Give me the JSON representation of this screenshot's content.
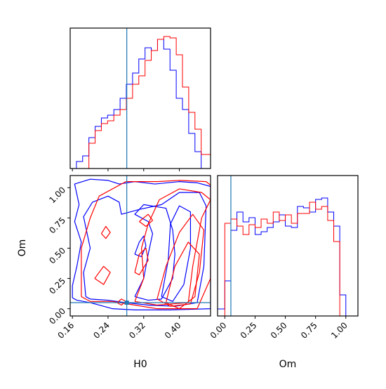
{
  "chart_data": [
    {
      "panel": "H0 marginal",
      "type": "histogram",
      "title": "",
      "xlabel": "",
      "ylabel": "",
      "xlim": [
        0.155,
        0.47
      ],
      "truth": 0.282,
      "series": [
        {
          "color": "#0000ff",
          "edges": [
            0.155,
            0.169,
            0.183,
            0.197,
            0.211,
            0.225,
            0.239,
            0.253,
            0.267,
            0.281,
            0.295,
            0.309,
            0.323,
            0.337,
            0.351,
            0.365,
            0.379,
            0.393,
            0.407,
            0.421,
            0.435,
            0.449,
            0.47
          ],
          "heights": [
            0.0,
            0.05,
            0.09,
            0.22,
            0.3,
            0.36,
            0.38,
            0.42,
            0.5,
            0.6,
            0.68,
            0.78,
            0.86,
            0.84,
            0.92,
            0.85,
            0.7,
            0.5,
            0.42,
            0.25,
            0.12,
            0.0
          ]
        },
        {
          "color": "#ff0000",
          "edges": [
            0.155,
            0.169,
            0.183,
            0.197,
            0.211,
            0.225,
            0.239,
            0.253,
            0.267,
            0.281,
            0.295,
            0.309,
            0.323,
            0.337,
            0.351,
            0.365,
            0.379,
            0.393,
            0.407,
            0.421,
            0.435,
            0.449,
            0.47
          ],
          "heights": [
            0.0,
            0.0,
            0.0,
            0.18,
            0.27,
            0.32,
            0.34,
            0.38,
            0.42,
            0.5,
            0.6,
            0.66,
            0.77,
            0.84,
            0.92,
            0.94,
            0.93,
            0.81,
            0.58,
            0.4,
            0.28,
            0.1
          ]
        }
      ]
    },
    {
      "panel": "Om marginal",
      "type": "histogram",
      "title": "",
      "xlabel": "Om",
      "ylabel": "",
      "xlim": [
        -0.06,
        1.1
      ],
      "xticks": [
        "0.00",
        "0.25",
        "0.50",
        "0.75",
        "1.00"
      ],
      "xtick_values": [
        0.0,
        0.25,
        0.5,
        0.75,
        1.0
      ],
      "truth": 0.05,
      "series": [
        {
          "color": "#0000ff",
          "edges": [
            -0.06,
            0.0,
            0.05,
            0.1,
            0.15,
            0.2,
            0.25,
            0.3,
            0.35,
            0.4,
            0.45,
            0.5,
            0.55,
            0.6,
            0.65,
            0.7,
            0.75,
            0.8,
            0.85,
            0.9,
            0.95,
            1.0,
            1.05,
            1.1
          ],
          "heights": [
            0.05,
            0.25,
            0.61,
            0.74,
            0.67,
            0.7,
            0.58,
            0.6,
            0.63,
            0.67,
            0.72,
            0.64,
            0.63,
            0.78,
            0.77,
            0.74,
            0.83,
            0.84,
            0.74,
            0.64,
            0.15,
            0.0,
            0.0
          ]
        },
        {
          "color": "#ff0000",
          "edges": [
            -0.06,
            0.0,
            0.05,
            0.1,
            0.15,
            0.2,
            0.25,
            0.3,
            0.35,
            0.4,
            0.45,
            0.5,
            0.55,
            0.6,
            0.65,
            0.7,
            0.75,
            0.8,
            0.85,
            0.9,
            0.95,
            1.0,
            1.05,
            1.1
          ],
          "heights": [
            0.0,
            0.66,
            0.69,
            0.64,
            0.58,
            0.65,
            0.63,
            0.69,
            0.66,
            0.74,
            0.68,
            0.72,
            0.66,
            0.73,
            0.73,
            0.81,
            0.76,
            0.78,
            0.68,
            0.53,
            0.0,
            0.0,
            0.0
          ]
        }
      ]
    },
    {
      "panel": "H0 vs Om joint",
      "type": "contour",
      "title": "",
      "xlabel": "H0",
      "ylabel": "Om",
      "xlim": [
        0.155,
        0.47
      ],
      "ylim": [
        -0.06,
        1.1
      ],
      "xticks": [
        "0.16",
        "0.24",
        "0.32",
        "0.40"
      ],
      "xtick_values": [
        0.16,
        0.24,
        0.32,
        0.4
      ],
      "yticks": [
        "0.00",
        "0.25",
        "0.50",
        "0.75",
        "1.00"
      ],
      "ytick_values": [
        0.0,
        0.25,
        0.5,
        0.75,
        1.0
      ],
      "truth": {
        "H0": 0.282,
        "Om": 0.05
      },
      "series": [
        {
          "color": "#0000ff",
          "contours": [
            [
              [
                0.16,
                0.09
              ],
              [
                0.16,
                0.19
              ],
              [
                0.17,
                0.35
              ],
              [
                0.18,
                0.55
              ],
              [
                0.165,
                0.72
              ],
              [
                0.175,
                0.86
              ],
              [
                0.165,
                1.03
              ],
              [
                0.2,
                1.07
              ],
              [
                0.24,
                1.06
              ],
              [
                0.265,
                1.03
              ],
              [
                0.3,
                1.05
              ],
              [
                0.345,
                1.03
              ],
              [
                0.4,
                1.05
              ],
              [
                0.44,
                1.04
              ],
              [
                0.47,
                1.01
              ],
              [
                0.47,
                0.0
              ],
              [
                0.38,
                -0.01
              ],
              [
                0.3,
                -0.01
              ],
              [
                0.25,
                0.0
              ],
              [
                0.22,
                0.03
              ],
              [
                0.2,
                0.05
              ],
              [
                0.17,
                0.07
              ],
              [
                0.16,
                0.09
              ]
            ],
            [
              [
                0.19,
                0.1
              ],
              [
                0.185,
                0.3
              ],
              [
                0.2,
                0.5
              ],
              [
                0.185,
                0.76
              ],
              [
                0.205,
                0.88
              ],
              [
                0.24,
                0.93
              ],
              [
                0.265,
                0.88
              ],
              [
                0.27,
                0.78
              ],
              [
                0.31,
                0.82
              ],
              [
                0.36,
                0.86
              ],
              [
                0.4,
                0.96
              ],
              [
                0.445,
                0.96
              ],
              [
                0.46,
                0.85
              ],
              [
                0.455,
                0.35
              ],
              [
                0.44,
                0.05
              ],
              [
                0.39,
                0.02
              ],
              [
                0.33,
                0.03
              ],
              [
                0.28,
                0.05
              ],
              [
                0.24,
                0.07
              ],
              [
                0.2,
                0.08
              ],
              [
                0.19,
                0.1
              ]
            ],
            [
              [
                0.3,
                0.1
              ],
              [
                0.32,
                0.25
              ],
              [
                0.33,
                0.45
              ],
              [
                0.34,
                0.62
              ],
              [
                0.33,
                0.72
              ],
              [
                0.3,
                0.78
              ],
              [
                0.32,
                0.86
              ],
              [
                0.37,
                0.83
              ],
              [
                0.385,
                0.65
              ],
              [
                0.39,
                0.45
              ],
              [
                0.385,
                0.25
              ],
              [
                0.36,
                0.08
              ],
              [
                0.33,
                0.07
              ],
              [
                0.3,
                0.1
              ]
            ],
            [
              [
                0.36,
                0.1
              ],
              [
                0.375,
                0.4
              ],
              [
                0.38,
                0.7
              ],
              [
                0.4,
                0.85
              ],
              [
                0.425,
                0.8
              ],
              [
                0.425,
                0.5
              ],
              [
                0.41,
                0.2
              ],
              [
                0.385,
                0.06
              ],
              [
                0.36,
                0.1
              ]
            ],
            [
              [
                0.3,
                0.45
              ],
              [
                0.31,
                0.55
              ],
              [
                0.32,
                0.6
              ],
              [
                0.325,
                0.52
              ],
              [
                0.315,
                0.43
              ],
              [
                0.3,
                0.45
              ]
            ]
          ]
        },
        {
          "color": "#ff0000",
          "contours": [
            [
              [
                0.18,
                0.1
              ],
              [
                0.18,
                0.5
              ],
              [
                0.2,
                0.75
              ],
              [
                0.22,
                0.93
              ],
              [
                0.28,
                1.05
              ],
              [
                0.35,
                1.05
              ],
              [
                0.4,
                1.06
              ],
              [
                0.46,
                1.05
              ],
              [
                0.47,
                1.02
              ],
              [
                0.47,
                0.25
              ],
              [
                0.44,
                0.0
              ],
              [
                0.35,
                0.0
              ],
              [
                0.3,
                0.03
              ],
              [
                0.25,
                0.06
              ],
              [
                0.2,
                0.06
              ],
              [
                0.18,
                0.1
              ]
            ],
            [
              [
                0.3,
                0.06
              ],
              [
                0.32,
                0.25
              ],
              [
                0.315,
                0.5
              ],
              [
                0.33,
                0.7
              ],
              [
                0.355,
                0.9
              ],
              [
                0.4,
                0.99
              ],
              [
                0.45,
                0.96
              ],
              [
                0.47,
                0.9
              ],
              [
                0.45,
                0.75
              ],
              [
                0.43,
                0.35
              ],
              [
                0.42,
                0.05
              ],
              [
                0.35,
                0.03
              ],
              [
                0.3,
                0.06
              ]
            ],
            [
              [
                0.35,
                0.08
              ],
              [
                0.37,
                0.35
              ],
              [
                0.4,
                0.63
              ],
              [
                0.43,
                0.78
              ],
              [
                0.455,
                0.65
              ],
              [
                0.445,
                0.3
              ],
              [
                0.425,
                0.04
              ],
              [
                0.38,
                0.02
              ],
              [
                0.35,
                0.08
              ]
            ],
            [
              [
                0.37,
                0.05
              ],
              [
                0.39,
                0.35
              ],
              [
                0.42,
                0.55
              ],
              [
                0.445,
                0.45
              ],
              [
                0.435,
                0.1
              ],
              [
                0.4,
                0.0
              ],
              [
                0.37,
                0.05
              ]
            ],
            [
              [
                0.3,
                0.3
              ],
              [
                0.31,
                0.45
              ],
              [
                0.325,
                0.5
              ],
              [
                0.33,
                0.4
              ],
              [
                0.31,
                0.28
              ],
              [
                0.3,
                0.3
              ]
            ],
            [
              [
                0.21,
                0.25
              ],
              [
                0.23,
                0.35
              ],
              [
                0.245,
                0.3
              ],
              [
                0.23,
                0.2
              ],
              [
                0.21,
                0.25
              ]
            ],
            [
              [
                0.225,
                0.62
              ],
              [
                0.235,
                0.68
              ],
              [
                0.245,
                0.63
              ],
              [
                0.235,
                0.58
              ],
              [
                0.225,
                0.62
              ]
            ],
            [
              [
                0.26,
                0.05
              ],
              [
                0.27,
                0.08
              ],
              [
                0.28,
                0.06
              ],
              [
                0.27,
                0.03
              ],
              [
                0.26,
                0.05
              ]
            ],
            [
              [
                0.31,
                0.72
              ],
              [
                0.33,
                0.78
              ],
              [
                0.34,
                0.73
              ],
              [
                0.325,
                0.68
              ],
              [
                0.31,
                0.72
              ]
            ]
          ]
        }
      ]
    }
  ]
}
